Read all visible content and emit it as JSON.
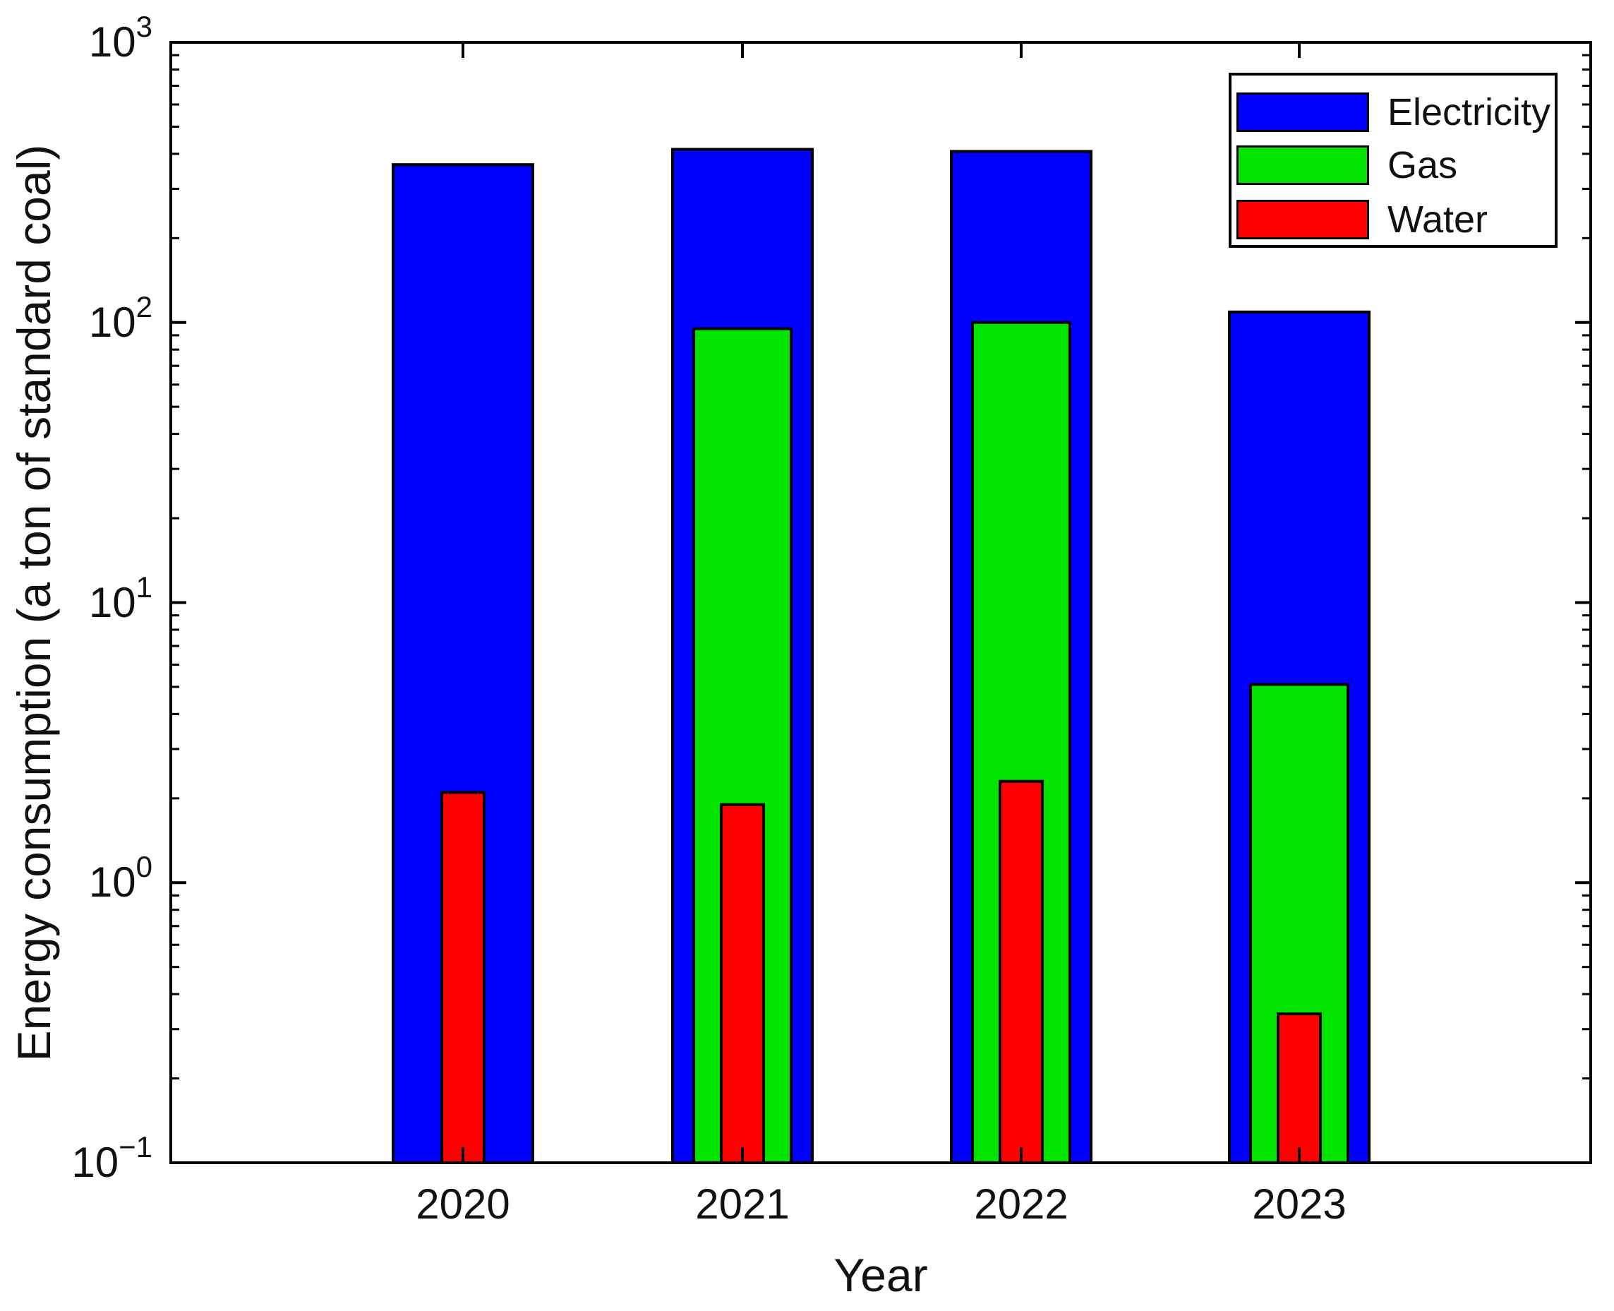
{
  "chart_data": {
    "type": "bar",
    "bar_style": "overlaid-nested",
    "y_scale": "log",
    "title": "",
    "xlabel": "Year",
    "ylabel": "Energy consumption  (a ton of standard coal)",
    "categories": [
      "2020",
      "2021",
      "2022",
      "2023"
    ],
    "series": [
      {
        "name": "Electricity",
        "color": "#0000ff",
        "values": [
          366,
          415,
          408,
          109
        ]
      },
      {
        "name": "Gas",
        "color": "#00e400",
        "values": [
          null,
          95,
          100,
          5.1
        ]
      },
      {
        "name": "Water",
        "color": "#ff0000",
        "values": [
          2.1,
          1.9,
          2.3,
          0.34
        ]
      }
    ],
    "ylim": [
      0.1,
      1000
    ],
    "y_tick_base": "10",
    "y_tick_exponents": [
      3,
      2,
      1,
      0,
      -1
    ],
    "grid": false,
    "legend_position": "top-right",
    "axis_color": "#000000",
    "background_color": "#ffffff"
  }
}
